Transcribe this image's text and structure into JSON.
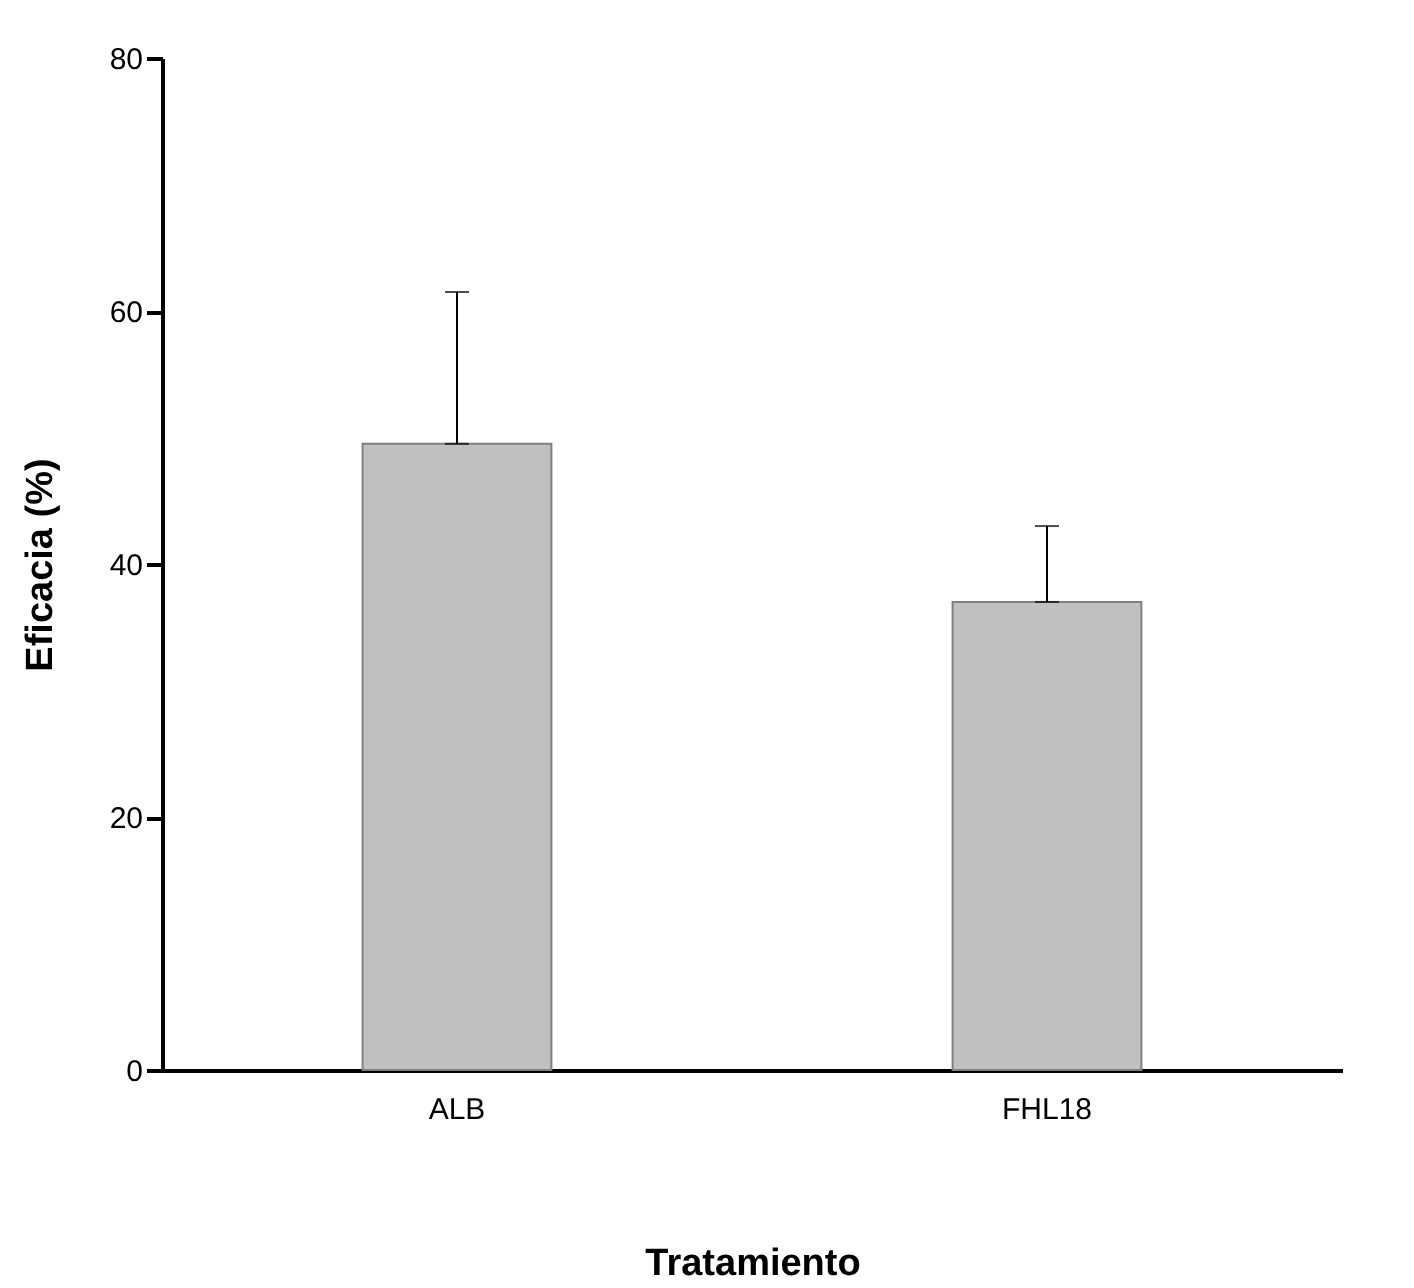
{
  "chart_data": {
    "type": "bar",
    "xlabel": "Tratamiento",
    "ylabel": "Eficacia (%)",
    "categories": [
      "ALB",
      "FHL18"
    ],
    "values": [
      49.5,
      37
    ],
    "errors": [
      [
        49.5,
        61.5
      ],
      [
        37,
        43
      ]
    ],
    "color": "#c0c0c0",
    "ylim": [
      0,
      80
    ],
    "yticks": [
      0,
      20,
      40,
      60,
      80
    ],
    "grid": false
  }
}
